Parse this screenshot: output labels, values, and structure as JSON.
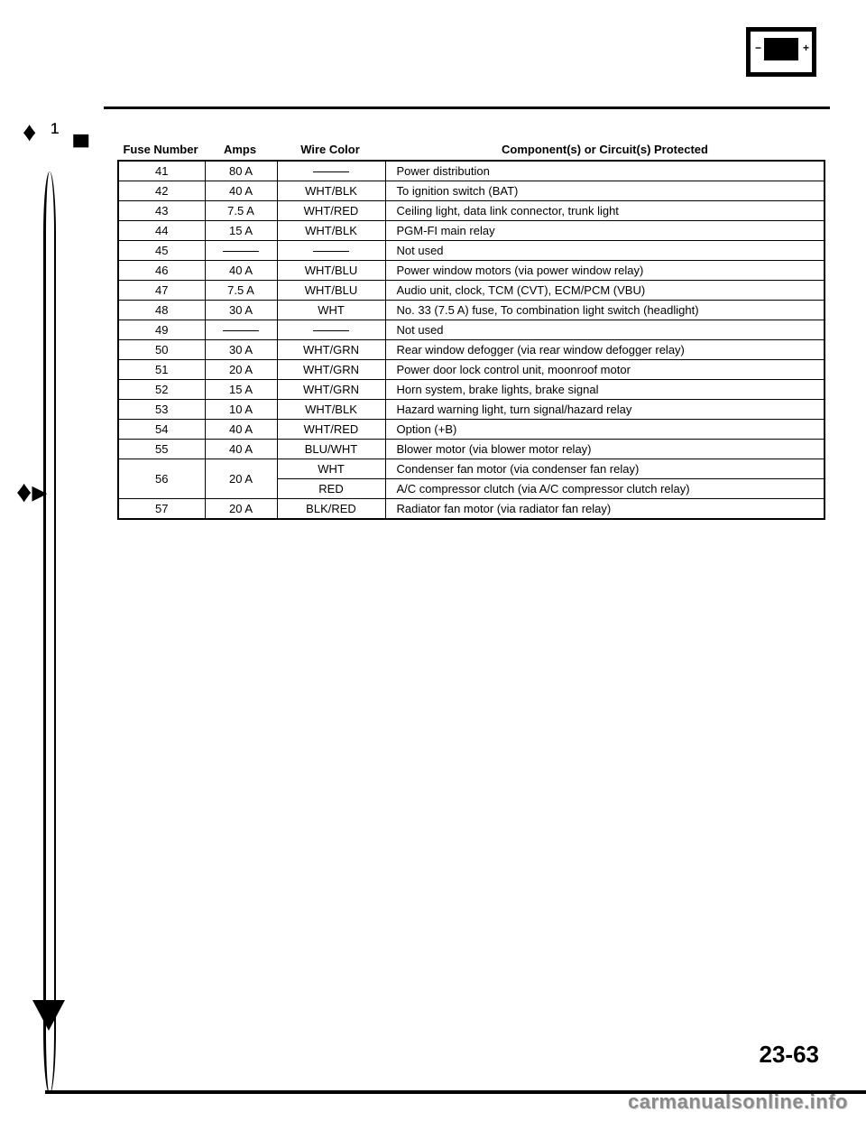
{
  "headers": {
    "fuse": "Fuse Number",
    "amps": "Amps",
    "wire": "Wire Color",
    "comp": "Component(s) or Circuit(s) Protected"
  },
  "rows": [
    {
      "fuse": "41",
      "amps": "80 A",
      "wire": "—",
      "comp": "Power distribution"
    },
    {
      "fuse": "42",
      "amps": "40 A",
      "wire": "WHT/BLK",
      "comp": "To ignition switch (BAT)"
    },
    {
      "fuse": "43",
      "amps": "7.5 A",
      "wire": "WHT/RED",
      "comp": "Ceiling light, data link connector, trunk light"
    },
    {
      "fuse": "44",
      "amps": "15 A",
      "wire": "WHT/BLK",
      "comp": "PGM-FI main relay"
    },
    {
      "fuse": "45",
      "amps": "—",
      "wire": "—",
      "comp": "Not used"
    },
    {
      "fuse": "46",
      "amps": "40 A",
      "wire": "WHT/BLU",
      "comp": "Power window motors (via power window relay)"
    },
    {
      "fuse": "47",
      "amps": "7.5 A",
      "wire": "WHT/BLU",
      "comp": "Audio unit, clock, TCM (CVT), ECM/PCM (VBU)"
    },
    {
      "fuse": "48",
      "amps": "30 A",
      "wire": "WHT",
      "comp": "No. 33 (7.5 A) fuse, To combination light switch (headlight)"
    },
    {
      "fuse": "49",
      "amps": "—",
      "wire": "—",
      "comp": "Not used"
    },
    {
      "fuse": "50",
      "amps": "30 A",
      "wire": "WHT/GRN",
      "comp": "Rear window defogger (via rear window defogger relay)"
    },
    {
      "fuse": "51",
      "amps": "20 A",
      "wire": "WHT/GRN",
      "comp": "Power door lock control unit, moonroof motor"
    },
    {
      "fuse": "52",
      "amps": "15 A",
      "wire": "WHT/GRN",
      "comp": "Horn system, brake lights, brake signal"
    },
    {
      "fuse": "53",
      "amps": "10 A",
      "wire": "WHT/BLK",
      "comp": "Hazard warning light, turn signal/hazard relay"
    },
    {
      "fuse": "54",
      "amps": "40 A",
      "wire": "WHT/RED",
      "comp": "Option (+B)"
    },
    {
      "fuse": "55",
      "amps": "40 A",
      "wire": "BLU/WHT",
      "comp": "Blower motor (via blower motor relay)"
    }
  ],
  "row56": {
    "fuse": "56",
    "amps": "20 A",
    "wire1": "WHT",
    "comp1": "Condenser fan motor (via condenser fan relay)",
    "wire2": "RED",
    "comp2": "A/C compressor clutch (via A/C compressor clutch relay)"
  },
  "row57": {
    "fuse": "57",
    "amps": "20 A",
    "wire": "BLK/RED",
    "comp": "Radiator fan motor (via radiator fan relay)"
  },
  "pageNumber": "23-63",
  "watermark": "carmanualsonline.info",
  "icon": {
    "minus": "−",
    "plus": "+"
  },
  "styles": {
    "bg": "#ffffff",
    "text": "#000000",
    "border": "#000000",
    "watermark_color": "#8a8a8a",
    "font_body": 13,
    "font_pagenum": 26,
    "font_watermark": 22
  }
}
